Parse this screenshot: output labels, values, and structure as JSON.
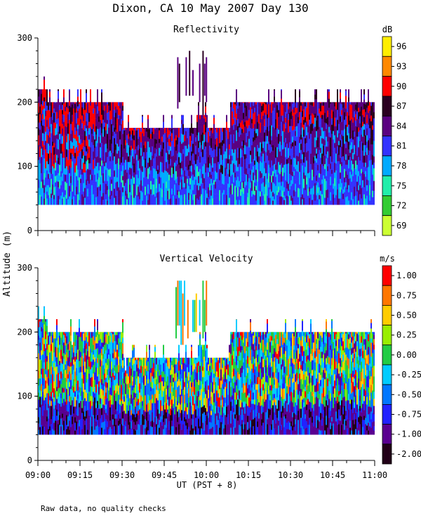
{
  "title": "Dixon, CA 10 May 2007  Day 130",
  "y_axis_label": "Altitude (m)",
  "x_axis_label": "UT  (PST + 8)",
  "footnote": "Raw data, no quality checks",
  "chart_data": [
    {
      "type": "heatmap",
      "title": "Reflectivity",
      "colorbar_unit": "dB",
      "colorbar_ticks": [
        "96",
        "93",
        "90",
        "87",
        "84",
        "81",
        "78",
        "75",
        "72",
        "69"
      ],
      "colorbar_colors": [
        "#ffee00",
        "#ff8800",
        "#ff0000",
        "#2a0020",
        "#5a0080",
        "#3333ff",
        "#00aaff",
        "#22eeaa",
        "#33cc33",
        "#ccff33"
      ],
      "xlabel": "UT  (PST + 8)",
      "ylabel": "Altitude (m)",
      "x_ticks": [
        "09:00",
        "09:15",
        "09:30",
        "09:45",
        "10:00",
        "10:15",
        "10:30",
        "10:45",
        "11:00"
      ],
      "x_range_min": [
        540,
        660
      ],
      "y_ticks": [
        "0",
        "100",
        "200",
        "300"
      ],
      "ylim": [
        0,
        300
      ],
      "echo_base_m": 40,
      "echo_top_profile": [
        {
          "t": 0,
          "top": 220
        },
        {
          "t": 3,
          "top": 200
        },
        {
          "t": 27,
          "top": 200
        },
        {
          "t": 30,
          "top": 160
        },
        {
          "t": 52,
          "top": 160
        },
        {
          "t": 56,
          "top": 180
        },
        {
          "t": 60,
          "top": 160
        },
        {
          "t": 66,
          "top": 160
        },
        {
          "t": 68,
          "top": 200
        },
        {
          "t": 120,
          "top": 200
        }
      ],
      "plume": {
        "t_start": 49,
        "t_end": 60,
        "top": 280
      }
    },
    {
      "type": "heatmap",
      "title": "Vertical Velocity",
      "colorbar_unit": "m/s",
      "colorbar_ticks": [
        "1.00",
        "0.75",
        "0.50",
        "0.25",
        "0.00",
        "-0.25",
        "-0.50",
        "-0.75",
        "-1.00",
        "-2.00"
      ],
      "colorbar_colors": [
        "#ff0000",
        "#ff7700",
        "#ffcc00",
        "#99ee00",
        "#22cc44",
        "#00ccff",
        "#0077ff",
        "#2222ff",
        "#5a0090",
        "#220018"
      ],
      "xlabel": "UT  (PST + 8)",
      "ylabel": "Altitude (m)",
      "x_ticks": [
        "09:00",
        "09:15",
        "09:30",
        "09:45",
        "10:00",
        "10:15",
        "10:30",
        "10:45",
        "11:00"
      ],
      "x_range_min": [
        540,
        660
      ],
      "y_ticks": [
        "0",
        "100",
        "200",
        "300"
      ],
      "ylim": [
        0,
        300
      ],
      "echo_base_m": 40,
      "echo_top_profile": [
        {
          "t": 0,
          "top": 220
        },
        {
          "t": 3,
          "top": 200
        },
        {
          "t": 27,
          "top": 200
        },
        {
          "t": 30,
          "top": 160
        },
        {
          "t": 52,
          "top": 160
        },
        {
          "t": 56,
          "top": 180
        },
        {
          "t": 60,
          "top": 160
        },
        {
          "t": 66,
          "top": 160
        },
        {
          "t": 68,
          "top": 200
        },
        {
          "t": 120,
          "top": 200
        }
      ],
      "plume": {
        "t_start": 49,
        "t_end": 60,
        "top": 280
      }
    }
  ]
}
